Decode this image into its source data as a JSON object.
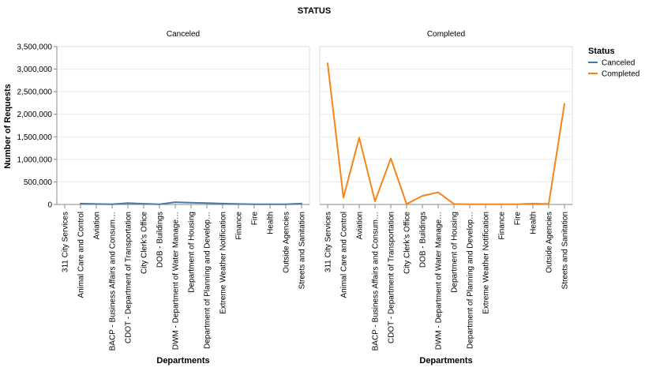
{
  "chart_data": {
    "type": "line",
    "title": "STATUS",
    "xlabel": "Departments",
    "ylabel": "Number of Requests",
    "ylim": [
      0,
      3500000
    ],
    "y_ticks": [
      "0",
      "500,000",
      "1,000,000",
      "1,500,000",
      "2,000,000",
      "2,500,000",
      "3,000,000",
      "3,500,000"
    ],
    "y_tick_values": [
      0,
      500000,
      1000000,
      1500000,
      2000000,
      2500000,
      3000000,
      3500000
    ],
    "grid": true,
    "facet_by": "Status",
    "categories": [
      "311 City Services",
      "Animal Care and Control",
      "Aviation",
      "BACP - Business Affairs and Consum…",
      "CDOT - Department of Transportation",
      "City Clerk's Office",
      "DOB - Buildings",
      "DWM - Department of Water Manage…",
      "Department of Housing",
      "Department of Planning and Develop…",
      "Extreme Weather Notification",
      "Finance",
      "Fire",
      "Health",
      "Outside Agencies",
      "Streets and Sanitation"
    ],
    "panels": [
      {
        "title": "Canceled",
        "series": [
          {
            "name": "Canceled",
            "color": "#4c78a8",
            "values": [
              null,
              20000,
              10000,
              5000,
              30000,
              15000,
              5000,
              50000,
              40000,
              30000,
              20000,
              10000,
              5000,
              5000,
              5000,
              20000
            ]
          }
        ]
      },
      {
        "title": "Completed",
        "series": [
          {
            "name": "Completed",
            "color": "#f58518",
            "values": [
              3130000,
              150000,
              1480000,
              70000,
              1020000,
              10000,
              190000,
              270000,
              10000,
              5000,
              5000,
              5000,
              5000,
              20000,
              10000,
              2230000
            ]
          }
        ]
      }
    ],
    "legend": {
      "title": "Status",
      "position": "right",
      "items": [
        {
          "label": "Canceled",
          "color": "#4c78a8"
        },
        {
          "label": "Completed",
          "color": "#f58518"
        }
      ]
    }
  }
}
